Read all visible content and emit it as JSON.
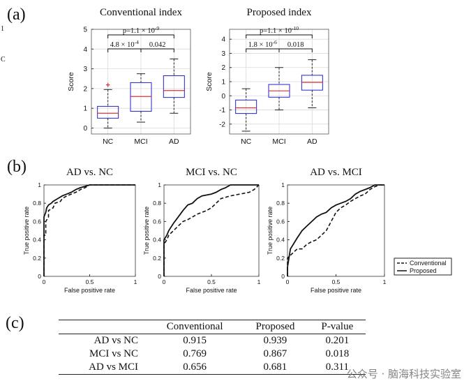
{
  "panel_labels": {
    "a": "(a)",
    "b": "(b)",
    "c": "(c)"
  },
  "side_marks": [
    "1",
    "C"
  ],
  "chart_data": [
    {
      "type": "box",
      "title": "Conventional index",
      "xlabel": "",
      "ylabel": "Score",
      "categories": [
        "NC",
        "MCI",
        "AD"
      ],
      "ylim": [
        -0.3,
        5
      ],
      "yticks": [
        0,
        1,
        2,
        3,
        4,
        5
      ],
      "boxes": [
        {
          "label": "NC",
          "whisker_low": 0.0,
          "q1": 0.5,
          "median": 0.75,
          "q3": 1.1,
          "whisker_high": 1.95,
          "outliers": [
            2.15
          ]
        },
        {
          "label": "MCI",
          "whisker_low": 0.3,
          "q1": 0.85,
          "median": 1.6,
          "q3": 2.3,
          "whisker_high": 2.75,
          "outliers": []
        },
        {
          "label": "AD",
          "whisker_low": 0.75,
          "q1": 1.55,
          "median": 1.9,
          "q3": 2.65,
          "whisker_high": 3.5,
          "outliers": []
        }
      ],
      "annotations": [
        {
          "from": 0,
          "to": 2,
          "text": "p=1.1 × 10",
          "sup": "-9"
        },
        {
          "from": 0,
          "to": 1,
          "text": "4.8 × 10",
          "sup": "-4"
        },
        {
          "from": 1,
          "to": 2,
          "text": "0.042",
          "sup": ""
        }
      ],
      "grid": true
    },
    {
      "type": "box",
      "title": "Proposed index",
      "xlabel": "",
      "ylabel": "Score",
      "categories": [
        "NC",
        "MCI",
        "AD"
      ],
      "ylim": [
        -2.7,
        4.7
      ],
      "yticks": [
        -2,
        -1,
        0,
        1,
        2,
        3,
        4
      ],
      "boxes": [
        {
          "label": "NC",
          "whisker_low": -2.5,
          "q1": -1.25,
          "median": -0.85,
          "q3": -0.3,
          "whisker_high": 0.5,
          "outliers": []
        },
        {
          "label": "MCI",
          "whisker_low": -1.0,
          "q1": -0.1,
          "median": 0.35,
          "q3": 0.8,
          "whisker_high": 2.0,
          "outliers": []
        },
        {
          "label": "AD",
          "whisker_low": -0.85,
          "q1": 0.4,
          "median": 0.95,
          "q3": 1.45,
          "whisker_high": 2.55,
          "outliers": []
        }
      ],
      "annotations": [
        {
          "from": 0,
          "to": 2,
          "text": "p=1.1 × 10",
          "sup": "-10"
        },
        {
          "from": 0,
          "to": 1,
          "text": "1.8 × 10",
          "sup": "-6"
        },
        {
          "from": 1,
          "to": 2,
          "text": "0.018",
          "sup": ""
        }
      ],
      "grid": true
    },
    {
      "type": "line",
      "title": "AD vs. NC",
      "xlabel": "False positive rate",
      "ylabel": "True positive rate",
      "xlim": [
        0,
        1
      ],
      "ylim": [
        0,
        1
      ],
      "xticks": [
        "0",
        "0.5",
        "1"
      ],
      "yticks": [
        "0",
        "0.2",
        "0.4",
        "0.6",
        "0.8",
        "1"
      ],
      "series": [
        {
          "name": "Conventional",
          "style": "dashed",
          "x": [
            0,
            0,
            0.02,
            0.02,
            0.05,
            0.05,
            0.1,
            0.12,
            0.18,
            0.2,
            0.25,
            0.3,
            0.35,
            0.4,
            0.45,
            0.5,
            0.6,
            0.7,
            1
          ],
          "y": [
            0,
            0.45,
            0.45,
            0.6,
            0.65,
            0.72,
            0.75,
            0.8,
            0.82,
            0.85,
            0.88,
            0.9,
            0.92,
            0.95,
            0.97,
            1,
            1,
            1,
            1
          ]
        },
        {
          "name": "Proposed",
          "style": "solid",
          "x": [
            0,
            0,
            0.02,
            0.03,
            0.05,
            0.08,
            0.1,
            0.15,
            0.2,
            0.25,
            0.3,
            0.35,
            0.4,
            0.5,
            0.6,
            0.65,
            1
          ],
          "y": [
            0,
            0.65,
            0.7,
            0.75,
            0.78,
            0.8,
            0.82,
            0.85,
            0.88,
            0.9,
            0.92,
            0.95,
            0.97,
            1,
            1,
            1,
            1
          ]
        }
      ]
    },
    {
      "type": "line",
      "title": "MCI vs. NC",
      "xlabel": "False positive rate",
      "ylabel": "True positive rate",
      "xlim": [
        0,
        1
      ],
      "ylim": [
        0,
        1
      ],
      "xticks": [
        "0",
        "0.5",
        "1"
      ],
      "yticks": [
        "0",
        "0.2",
        "0.4",
        "0.6",
        "0.8",
        "1"
      ],
      "series": [
        {
          "name": "Conventional",
          "style": "dashed",
          "x": [
            0,
            0,
            0.03,
            0.05,
            0.1,
            0.15,
            0.2,
            0.25,
            0.3,
            0.35,
            0.4,
            0.45,
            0.5,
            0.55,
            0.6,
            0.7,
            0.8,
            0.9,
            0.95,
            1
          ],
          "y": [
            0,
            0.35,
            0.4,
            0.45,
            0.5,
            0.55,
            0.6,
            0.62,
            0.65,
            0.68,
            0.7,
            0.72,
            0.75,
            0.8,
            0.85,
            0.88,
            0.9,
            0.92,
            0.95,
            1
          ]
        },
        {
          "name": "Proposed",
          "style": "solid",
          "x": [
            0,
            0,
            0.03,
            0.05,
            0.1,
            0.15,
            0.2,
            0.25,
            0.3,
            0.35,
            0.4,
            0.5,
            0.55,
            0.6,
            0.65,
            0.7,
            0.75,
            1
          ],
          "y": [
            0,
            0.4,
            0.45,
            0.5,
            0.58,
            0.65,
            0.72,
            0.78,
            0.8,
            0.85,
            0.88,
            0.9,
            0.92,
            0.95,
            0.97,
            1,
            1,
            1
          ]
        }
      ]
    },
    {
      "type": "line",
      "title": "AD vs. MCI",
      "xlabel": "False positive rate",
      "ylabel": "True positive rate",
      "xlim": [
        0,
        1
      ],
      "ylim": [
        0,
        1
      ],
      "xticks": [
        "0",
        "0.5",
        "1"
      ],
      "yticks": [
        "0",
        "0.2",
        "0.4",
        "0.6",
        "0.8",
        "1"
      ],
      "series": [
        {
          "name": "Conventional",
          "style": "dashed",
          "x": [
            0,
            0,
            0.05,
            0.1,
            0.15,
            0.2,
            0.25,
            0.3,
            0.35,
            0.4,
            0.45,
            0.5,
            0.55,
            0.6,
            0.65,
            0.7,
            0.75,
            0.8,
            0.85,
            0.9,
            0.95,
            1
          ],
          "y": [
            0,
            0.2,
            0.25,
            0.3,
            0.3,
            0.35,
            0.38,
            0.4,
            0.45,
            0.5,
            0.6,
            0.7,
            0.75,
            0.78,
            0.82,
            0.85,
            0.88,
            0.9,
            0.95,
            0.98,
            1,
            1
          ]
        },
        {
          "name": "Proposed",
          "style": "solid",
          "x": [
            0,
            0,
            0.03,
            0.06,
            0.1,
            0.15,
            0.2,
            0.25,
            0.3,
            0.35,
            0.4,
            0.45,
            0.5,
            0.55,
            0.6,
            0.65,
            0.7,
            0.75,
            0.8,
            0.85,
            0.9,
            0.95,
            1
          ],
          "y": [
            0,
            0.1,
            0.3,
            0.35,
            0.42,
            0.5,
            0.55,
            0.6,
            0.65,
            0.68,
            0.7,
            0.75,
            0.78,
            0.8,
            0.82,
            0.85,
            0.9,
            0.93,
            0.95,
            0.97,
            1,
            1,
            1
          ]
        }
      ]
    }
  ],
  "legend": {
    "items": [
      {
        "name": "Conventional",
        "style": "dashed"
      },
      {
        "name": "Proposed",
        "style": "solid"
      }
    ]
  },
  "table": {
    "headers": [
      "",
      "Conventional",
      "Proposed",
      "P-value"
    ],
    "rows": [
      [
        "AD vs NC",
        "0.915",
        "0.939",
        "0.201"
      ],
      [
        "MCI vs NC",
        "0.769",
        "0.867",
        "0.018"
      ],
      [
        "AD vs MCI",
        "0.656",
        "0.681",
        "0.311"
      ]
    ]
  },
  "watermark": "公众号 · 脑海科技实验室",
  "colors": {
    "box": "#2222cc",
    "median": "#e03030",
    "outlier": "#e03030",
    "axis": "#111111",
    "grid": "#d9d9d9"
  }
}
